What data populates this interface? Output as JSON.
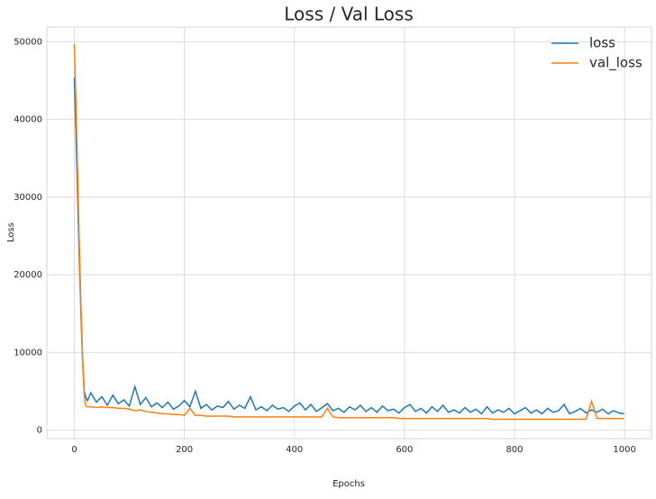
{
  "chart_data": {
    "type": "line",
    "title": "Loss / Val Loss",
    "xlabel": "Epochs",
    "ylabel": "Loss",
    "x": [
      0,
      3,
      6,
      9,
      12,
      15,
      18,
      21,
      24,
      30,
      40,
      50,
      60,
      70,
      80,
      90,
      100,
      110,
      120,
      130,
      140,
      150,
      160,
      170,
      180,
      190,
      200,
      210,
      220,
      230,
      240,
      250,
      260,
      270,
      280,
      290,
      300,
      310,
      320,
      330,
      340,
      350,
      360,
      370,
      380,
      390,
      400,
      410,
      420,
      430,
      440,
      450,
      460,
      470,
      480,
      490,
      500,
      510,
      520,
      530,
      540,
      550,
      560,
      570,
      580,
      590,
      600,
      610,
      620,
      630,
      640,
      650,
      660,
      670,
      680,
      690,
      700,
      710,
      720,
      730,
      740,
      750,
      760,
      770,
      780,
      790,
      800,
      810,
      820,
      830,
      840,
      850,
      860,
      870,
      880,
      890,
      900,
      910,
      920,
      930,
      940,
      950,
      960,
      970,
      980,
      990,
      999
    ],
    "series": [
      {
        "name": "loss",
        "color": "#1f77b4",
        "values": [
          45400,
          38000,
          30000,
          22000,
          15000,
          9000,
          5000,
          4200,
          3800,
          4800,
          3600,
          4300,
          3200,
          4500,
          3400,
          3900,
          3100,
          5600,
          3300,
          4200,
          3000,
          3500,
          2900,
          3600,
          2700,
          3100,
          3800,
          3000,
          5000,
          2800,
          3300,
          2600,
          3100,
          2900,
          3700,
          2700,
          3200,
          2800,
          4300,
          2600,
          3000,
          2500,
          3200,
          2700,
          2900,
          2400,
          3100,
          3500,
          2600,
          3300,
          2400,
          2900,
          3400,
          2500,
          2800,
          2300,
          3000,
          2600,
          3200,
          2400,
          2900,
          2300,
          3100,
          2500,
          2700,
          2200,
          2900,
          3300,
          2400,
          2800,
          2200,
          3000,
          2400,
          3200,
          2300,
          2600,
          2200,
          2900,
          2300,
          2700,
          2100,
          3000,
          2200,
          2600,
          2300,
          2800,
          2100,
          2500,
          2900,
          2200,
          2600,
          2100,
          2800,
          2300,
          2500,
          3300,
          2100,
          2400,
          2800,
          2200,
          2600,
          2300,
          2700,
          2100,
          2500,
          2200,
          2100
        ]
      },
      {
        "name": "val_loss",
        "color": "#ff7f0e",
        "values": [
          49700,
          42000,
          33000,
          24000,
          16000,
          9500,
          4500,
          3100,
          3000,
          3000,
          2900,
          3000,
          2900,
          2900,
          2800,
          2800,
          2700,
          2500,
          2600,
          2400,
          2300,
          2200,
          2100,
          2100,
          2000,
          2000,
          1900,
          2800,
          1900,
          1900,
          1800,
          1800,
          1800,
          1800,
          1800,
          1700,
          1700,
          1700,
          1700,
          1700,
          1700,
          1700,
          1700,
          1700,
          1700,
          1700,
          1700,
          1700,
          1700,
          1700,
          1700,
          1700,
          2800,
          1700,
          1600,
          1600,
          1600,
          1600,
          1600,
          1600,
          1600,
          1600,
          1600,
          1600,
          1600,
          1500,
          1500,
          1500,
          1500,
          1500,
          1500,
          1500,
          1500,
          1500,
          1500,
          1500,
          1500,
          1500,
          1500,
          1500,
          1500,
          1500,
          1400,
          1400,
          1400,
          1400,
          1400,
          1400,
          1400,
          1400,
          1400,
          1400,
          1400,
          1400,
          1400,
          1400,
          1400,
          1400,
          1400,
          1400,
          3700,
          1500,
          1500,
          1500,
          1500,
          1500,
          1500
        ]
      }
    ],
    "xlim": [
      -49.95,
      1048.95
    ],
    "ylim": [
      -1100,
      51900
    ],
    "xticks": [
      0,
      200,
      400,
      600,
      800,
      1000
    ],
    "yticks": [
      0,
      10000,
      20000,
      30000,
      40000,
      50000
    ],
    "grid": true,
    "legend": "upper right"
  }
}
